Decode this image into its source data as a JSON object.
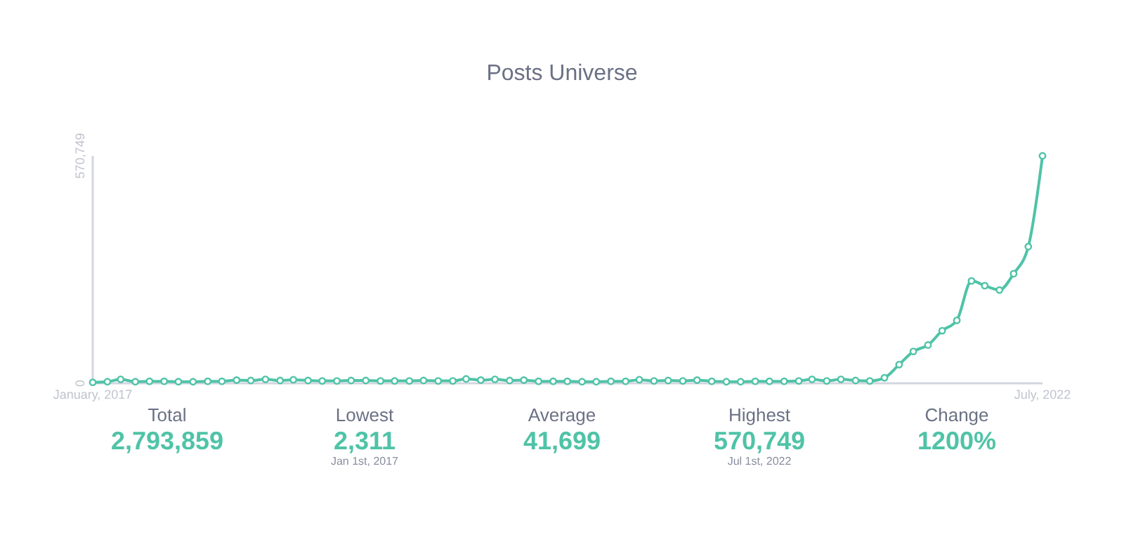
{
  "chart_data": [
    {
      "type": "line",
      "title": "Posts Universe",
      "x": [
        "2017-01",
        "2017-02",
        "2017-03",
        "2017-04",
        "2017-05",
        "2017-06",
        "2017-07",
        "2017-08",
        "2017-09",
        "2017-10",
        "2017-11",
        "2017-12",
        "2018-01",
        "2018-02",
        "2018-03",
        "2018-04",
        "2018-05",
        "2018-06",
        "2018-07",
        "2018-08",
        "2018-09",
        "2018-10",
        "2018-11",
        "2018-12",
        "2019-01",
        "2019-02",
        "2019-03",
        "2019-04",
        "2019-05",
        "2019-06",
        "2019-07",
        "2019-08",
        "2019-09",
        "2019-10",
        "2019-11",
        "2019-12",
        "2020-01",
        "2020-02",
        "2020-03",
        "2020-04",
        "2020-05",
        "2020-06",
        "2020-07",
        "2020-08",
        "2020-09",
        "2020-10",
        "2020-11",
        "2020-12",
        "2021-01",
        "2021-02",
        "2021-03",
        "2021-04",
        "2021-05",
        "2021-06",
        "2021-07",
        "2021-08",
        "2021-09",
        "2021-10",
        "2021-11",
        "2021-12",
        "2022-01",
        "2022-02",
        "2022-03",
        "2022-04",
        "2022-05",
        "2022-06",
        "2022-07"
      ],
      "series": [
        {
          "color": "#4fc3a7",
          "values": [
            2311,
            4000,
            10000,
            4000,
            5000,
            5000,
            4000,
            4000,
            5000,
            5000,
            8000,
            7000,
            10000,
            7000,
            9000,
            7000,
            6000,
            6000,
            7000,
            7000,
            6000,
            6000,
            6000,
            7000,
            6000,
            6000,
            11000,
            8000,
            10000,
            7000,
            8000,
            5000,
            5000,
            5000,
            4000,
            4000,
            5000,
            5000,
            9000,
            6000,
            7000,
            6000,
            8000,
            5000,
            4000,
            4000,
            5000,
            5000,
            5000,
            6000,
            10000,
            6000,
            10000,
            7000,
            6000,
            14000,
            47000,
            80000,
            96000,
            132000,
            158000,
            257000,
            245000,
            234000,
            275000,
            343000,
            570749
          ]
        }
      ],
      "xlim": [
        "2017-01",
        "2022-07"
      ],
      "xticks": [
        {
          "value": "2017-01",
          "label": "January, 2017"
        },
        {
          "value": "2022-07",
          "label": "July, 2022"
        }
      ],
      "ylim": [
        0,
        570749
      ],
      "yticks": [
        {
          "value": 0,
          "label": "0"
        },
        {
          "value": 570749,
          "label": "570,749"
        }
      ],
      "grid": false,
      "marker": "circle"
    },
    {
      "type": "other",
      "categories": [
        "Total",
        "Lowest",
        "Average",
        "Highest",
        "Change"
      ],
      "value_labels": [
        "2,793,859",
        "2,311",
        "41,699",
        "570,749",
        "1200%"
      ],
      "annotations": [
        {
          "text": "Jan 1st, 2017",
          "x": "Lowest"
        },
        {
          "text": "Jul 1st, 2022",
          "x": "Highest"
        }
      ]
    }
  ]
}
